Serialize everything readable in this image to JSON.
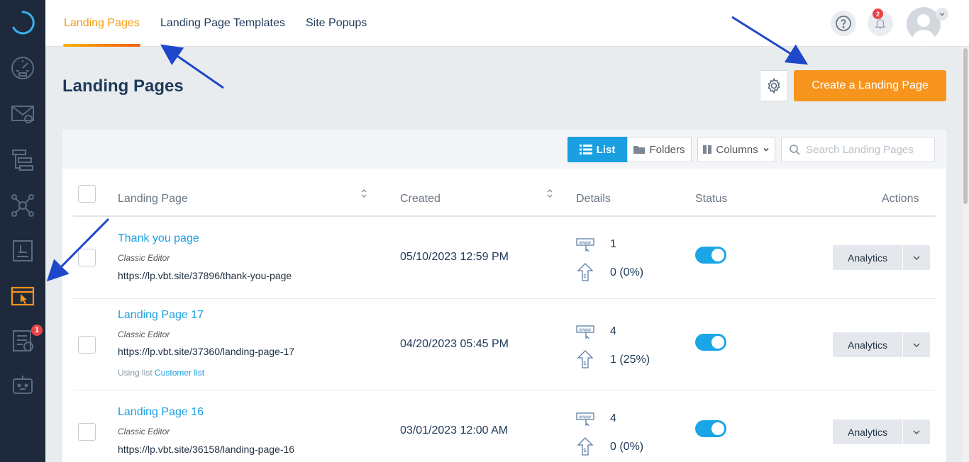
{
  "tabs": [
    {
      "label": "Landing Pages",
      "active": true
    },
    {
      "label": "Landing Page Templates",
      "active": false
    },
    {
      "label": "Site Popups",
      "active": false
    }
  ],
  "notifications": {
    "count": "2"
  },
  "sidebar": {
    "active_item": "landing-pages",
    "tasks_badge": "1"
  },
  "page": {
    "title": "Landing Pages",
    "create_button": "Create a Landing Page"
  },
  "toolbar": {
    "list_label": "List",
    "folders_label": "Folders",
    "columns_label": "Columns",
    "search_placeholder": "Search Landing Pages"
  },
  "table": {
    "headers": {
      "landing_page": "Landing Page",
      "created": "Created",
      "details": "Details",
      "status": "Status",
      "actions": "Actions"
    },
    "rows": [
      {
        "name": "Thank you page",
        "editor": "Classic Editor",
        "url": "https://lp.vbt.site/37896/thank-you-page",
        "created": "05/10/2023 12:59 PM",
        "visits": "1",
        "conversions": "0 (0%)",
        "status_on": true,
        "action": "Analytics"
      },
      {
        "name": "Landing Page 17",
        "editor": "Classic Editor",
        "url": "https://lp.vbt.site/37360/landing-page-17",
        "list_prefix": "Using list",
        "list_name": "Customer list",
        "created": "04/20/2023 05:45 PM",
        "visits": "4",
        "conversions": "1 (25%)",
        "status_on": true,
        "action": "Analytics"
      },
      {
        "name": "Landing Page 16",
        "editor": "Classic Editor",
        "url": "https://lp.vbt.site/36158/landing-page-16",
        "created": "03/01/2023 12:00 AM",
        "visits": "4",
        "conversions": "0 (0%)",
        "status_on": true,
        "action": "Analytics"
      }
    ]
  },
  "colors": {
    "accent": "#f7941d",
    "link": "#1a9fe0",
    "sidebar": "#1e2a3b",
    "annotation_arrow": "#1f47c9"
  }
}
